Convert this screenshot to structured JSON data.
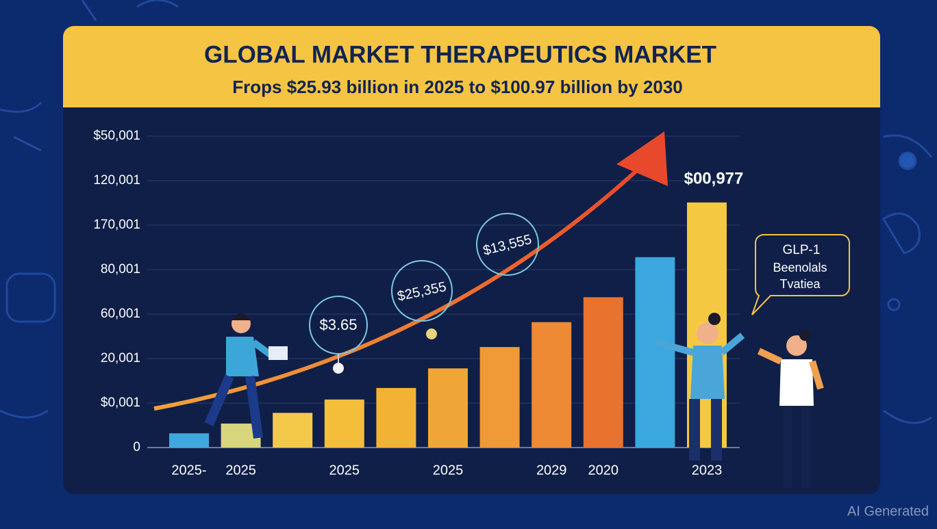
{
  "chart_data": {
    "type": "bar",
    "title": "GLOBAL MARKET THERAPEUTICS MARKET",
    "subtitle": "Frops $25.93 billion in 2025 to $100.97 billion by 2030",
    "categories": [
      "2025-",
      "2025",
      null,
      "2025",
      null,
      "2025",
      null,
      "2029",
      "2020",
      null,
      "2023"
    ],
    "values": [
      0.32,
      0.54,
      0.78,
      1.08,
      1.34,
      1.78,
      2.26,
      2.82,
      3.38,
      4.28,
      5.51
    ],
    "colors": [
      "#3fa9df",
      "#d8d67c",
      "#f3c94a",
      "#f4bd3a",
      "#f2b234",
      "#f0a636",
      "#ef9a36",
      "#ee8a33",
      "#e8722e",
      "#3aa7de",
      "#f5c842"
    ],
    "ylim": [
      0,
      7
    ],
    "yticks": [
      {
        "value": 0,
        "label": "0"
      },
      {
        "value": 1,
        "label": "$0,001"
      },
      {
        "value": 2,
        "label": "20,001"
      },
      {
        "value": 3,
        "label": "60,001"
      },
      {
        "value": 4,
        "label": "80,001"
      },
      {
        "value": 5,
        "label": "170,001"
      },
      {
        "value": 6,
        "label": "120,001"
      },
      {
        "value": 7,
        "label": "$50,001"
      }
    ],
    "grid": true,
    "annotations": [
      "$00,977",
      "$3.65",
      "$25,355",
      "$13,555"
    ],
    "callout": [
      "GLP-1",
      "Beenolals",
      "Tvatiea"
    ],
    "watermark": "AI Generated"
  }
}
